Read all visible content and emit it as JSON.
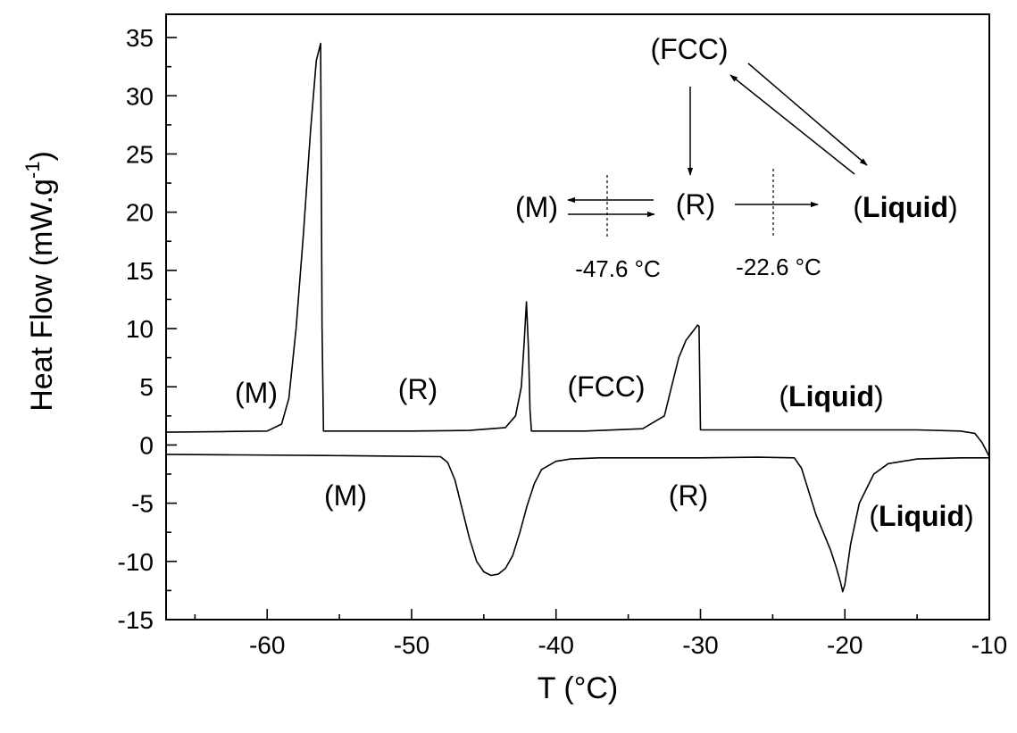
{
  "chart_data": {
    "type": "line",
    "xlabel": "T (°C)",
    "ylabel_main": "Heat Flow (mW.g",
    "ylabel_sup": "-1",
    "ylabel_close": ")",
    "xlim": [
      -67,
      -10
    ],
    "ylim": [
      -15,
      37
    ],
    "xticks": [
      -60,
      -50,
      -40,
      -30,
      -20,
      -10
    ],
    "xtick_labels": [
      "-60",
      "-50",
      "-40",
      "-30",
      "-20",
      "-10"
    ],
    "yticks": [
      -15,
      -10,
      -5,
      0,
      5,
      10,
      15,
      20,
      25,
      30,
      35
    ],
    "ytick_labels": [
      "-15",
      "-10",
      "-5",
      "0",
      "5",
      "10",
      "15",
      "20",
      "25",
      "30",
      "35"
    ],
    "grid": false,
    "legend": "none",
    "series": [
      {
        "x": [
          -67,
          -63,
          -60,
          -59,
          -58.5,
          -58,
          -57.5,
          -57,
          -56.6,
          -56.3,
          -56.2,
          -56.1,
          -55,
          -50,
          -46,
          -43.5,
          -42.8,
          -42.4,
          -42.2,
          -42.05,
          -41.9,
          -41.8,
          -41.7,
          -38,
          -34,
          -32.5,
          -32,
          -31.5,
          -31,
          -30.5,
          -30.2,
          -30.1,
          -30.0,
          -25,
          -20,
          -15,
          -12,
          -11,
          -10.5,
          -10
        ],
        "values": [
          1.1,
          1.15,
          1.2,
          1.8,
          4,
          10,
          18,
          27,
          33,
          34.5,
          10,
          1.2,
          1.2,
          1.2,
          1.25,
          1.5,
          2.5,
          5,
          9,
          12.3,
          8,
          3,
          1.2,
          1.2,
          1.4,
          2.5,
          5,
          7.5,
          9,
          9.8,
          10.3,
          10.2,
          1.3,
          1.3,
          1.3,
          1.3,
          1.2,
          1.0,
          0.2,
          -1.0
        ]
      },
      {
        "x": [
          -67,
          -62,
          -56,
          -52,
          -48,
          -47.5,
          -47,
          -46.5,
          -46,
          -45.5,
          -45,
          -44.5,
          -44,
          -43.5,
          -43,
          -42.5,
          -42,
          -41.5,
          -41,
          -40,
          -39,
          -37,
          -30,
          -26,
          -23.5,
          -23,
          -22.5,
          -22,
          -21.5,
          -21,
          -20.6,
          -20.3,
          -20.15,
          -20.0,
          -19.6,
          -19,
          -18,
          -17,
          -15,
          -12,
          -10
        ],
        "values": [
          -0.8,
          -0.85,
          -0.9,
          -0.95,
          -1.0,
          -1.5,
          -3,
          -5.5,
          -8,
          -10,
          -10.9,
          -11.2,
          -11.1,
          -10.6,
          -9.5,
          -7.5,
          -5.2,
          -3.3,
          -2.1,
          -1.4,
          -1.2,
          -1.1,
          -1.1,
          -1.05,
          -1.1,
          -2,
          -4,
          -6,
          -7.5,
          -9,
          -10.5,
          -11.8,
          -12.6,
          -12.0,
          -8.5,
          -5,
          -2.5,
          -1.6,
          -1.2,
          -1.1,
          -1.1
        ]
      }
    ],
    "annotations": {
      "heating_M": "(M)",
      "heating_R": "(R)",
      "heating_FCC": "(FCC)",
      "heating_liquid_open": "(",
      "heating_liquid_bold": "Liquid",
      "heating_liquid_close": ")",
      "cooling_M": "(M)",
      "cooling_R": "(R)",
      "cooling_liquid_open": "(",
      "cooling_liquid_bold": "Liquid",
      "cooling_liquid_close": ")"
    },
    "inset": {
      "fcc": "(FCC)",
      "m": "(M)",
      "r": "(R)",
      "liquid_open": "(",
      "liquid_bold": "Liquid",
      "liquid_close": ")",
      "temp_left": "-47.6 °C",
      "temp_right": "-22.6 °C"
    }
  }
}
